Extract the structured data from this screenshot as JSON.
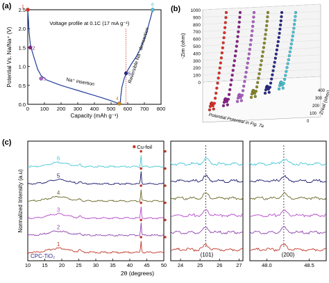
{
  "panel_labels": {
    "a": "(a)",
    "b": "(b)",
    "c": "(c)"
  },
  "chart_data": [
    {
      "panel": "(a)",
      "type": "line",
      "title": "Voltage profile at 0.1C (17 mA g⁻¹)",
      "xlabel": "Capacity (mAh g⁻¹)",
      "ylabel": "Potential Vs. Na/Na⁺ (V)",
      "xlim": [
        0,
        800
      ],
      "ylim": [
        0,
        2.5
      ],
      "xticks": [
        "0",
        "100",
        "200",
        "300",
        "400",
        "500",
        "600",
        "700",
        "800"
      ],
      "yticks": [
        "0.0",
        "0.5",
        "1.0",
        "1.5",
        "2.0",
        "2.5"
      ],
      "grid": false,
      "series": [
        {
          "name": "Na⁺ insertion",
          "color": "#1f3c99",
          "x": [
            0,
            3,
            8,
            15,
            25,
            40,
            60,
            80,
            110,
            150,
            200,
            260,
            320,
            380,
            440,
            490,
            520,
            545,
            555
          ],
          "y": [
            2.5,
            2.3,
            1.9,
            1.6,
            1.42,
            1.2,
            0.92,
            0.76,
            0.65,
            0.58,
            0.5,
            0.42,
            0.34,
            0.26,
            0.18,
            0.11,
            0.06,
            0.02,
            0.0
          ]
        },
        {
          "name": "Reversible Na⁺ deinsertion",
          "color": "#1f3c99",
          "x": [
            555,
            558,
            565,
            580,
            600,
            620,
            650,
            680,
            710,
            735,
            750
          ],
          "y": [
            0.0,
            0.2,
            0.45,
            0.7,
            0.9,
            1.05,
            1.25,
            1.5,
            1.85,
            2.25,
            2.5
          ]
        }
      ],
      "markers": [
        {
          "label": "1",
          "x": 0,
          "y": 2.5,
          "color": "#e0302a"
        },
        {
          "label": "2",
          "x": 15,
          "y": 1.5,
          "color": "#8a1f8a"
        },
        {
          "label": "3",
          "x": 80,
          "y": 0.68,
          "color": "#b060c8"
        },
        {
          "label": "4",
          "x": 550,
          "y": 0.02,
          "color": "#d08a20"
        },
        {
          "label": "5",
          "x": 590,
          "y": 0.82,
          "color": "#2a2a8a"
        },
        {
          "label": "6",
          "x": 750,
          "y": 2.5,
          "color": "#49c6d8"
        }
      ],
      "annotations": [
        "Na⁺ insertion",
        "Reversible Na⁺ deinsertion"
      ],
      "reference_line_x": 590
    },
    {
      "panel": "(b)",
      "type": "scatter",
      "xlabel": "Zreal (ohm)",
      "ylabel": "-Zim (ohm)",
      "zlabel": "Potential Potential in Fig. 7a",
      "xticks": [
        "0",
        "100",
        "200",
        "300",
        "400"
      ],
      "yticks": [
        "0",
        "100",
        "200",
        "300",
        "400",
        "500",
        "600",
        "700",
        "800",
        "900",
        "1000"
      ],
      "zlim": [
        0,
        1000
      ],
      "grid": true,
      "series": [
        {
          "name": "1",
          "color": "#e0302a",
          "peak_zim": 1000,
          "knee_zim": 120
        },
        {
          "name": "2",
          "color": "#8a1f8a",
          "peak_zim": 1000,
          "knee_zim": 110
        },
        {
          "name": "3",
          "color": "#b060c8",
          "peak_zim": 1000,
          "knee_zim": 100
        },
        {
          "name": "4",
          "color": "#8a8a2a",
          "peak_zim": 1000,
          "knee_zim": 95
        },
        {
          "name": "5",
          "color": "#2a2a8a",
          "peak_zim": 1000,
          "knee_zim": 90
        },
        {
          "name": "6",
          "color": "#49c6d8",
          "peak_zim": 1000,
          "knee_zim": 110
        }
      ]
    },
    {
      "panel": "(c)",
      "type": "line",
      "xlabel": "2θ (degrees)",
      "ylabel": "Normalized Intensity (a.u)",
      "xticks": [
        "10",
        "15",
        "20",
        "25",
        "30",
        "35",
        "40",
        "45",
        "50"
      ],
      "legend": "Cu-foil",
      "series_label": "CPC-TiO₂",
      "series": [
        {
          "name": "1",
          "color": "#c0392b"
        },
        {
          "name": "2",
          "color": "#8e44ad"
        },
        {
          "name": "3",
          "color": "#b548c9"
        },
        {
          "name": "4",
          "color": "#6b6b2a"
        },
        {
          "name": "5",
          "color": "#1a1a6e"
        },
        {
          "name": "6",
          "color": "#49c6d8"
        }
      ],
      "cu_peaks_2theta": [
        43.3,
        50.4
      ],
      "inset_1": {
        "label": "(101)",
        "xticks": [
          "24",
          "25",
          "26",
          "27"
        ],
        "xlim": [
          23.5,
          27.2
        ],
        "ref_2theta": 25.3
      },
      "inset_2": {
        "label": "(200)",
        "xticks": [
          "48.0",
          "48.5"
        ],
        "xlim": [
          47.8,
          48.7
        ],
        "ref_2theta": 48.2
      }
    }
  ]
}
